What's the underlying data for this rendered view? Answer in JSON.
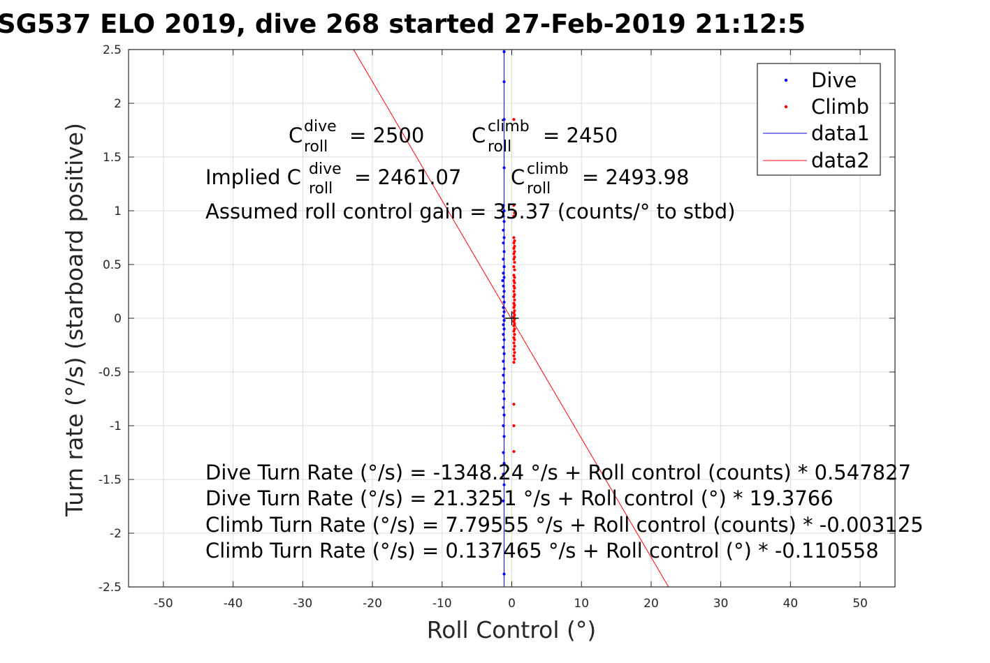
{
  "chart_data": {
    "type": "scatter",
    "title": "SG537 ELO 2019, dive 268 started 27-Feb-2019 21:12:5",
    "xlabel": "Roll Control (°)",
    "ylabel": "Turn rate (°/s) (starboard positive)",
    "xlim": [
      -55,
      55
    ],
    "ylim": [
      -2.5,
      2.5
    ],
    "x_ticks": [
      -50,
      -40,
      -30,
      -20,
      -10,
      0,
      10,
      20,
      30,
      40,
      50
    ],
    "y_ticks": [
      -2.5,
      -2,
      -1.5,
      -1,
      -0.5,
      0,
      0.5,
      1,
      1.5,
      2,
      2.5
    ],
    "x_tick_labels": [
      "-50",
      "-40",
      "-30",
      "-20",
      "-10",
      "0",
      "10",
      "20",
      "30",
      "40",
      "50"
    ],
    "y_tick_labels": [
      "-2.5",
      "-2",
      "-1.5",
      "-1",
      "-0.5",
      "0",
      "0.5",
      "1",
      "1.5",
      "2",
      "2.5"
    ],
    "grid": true,
    "legend_placement": "top-right",
    "series": [
      {
        "name": "Dive",
        "kind": "points",
        "color": "#0000ff",
        "points": [
          [
            -1.1,
            2.48
          ],
          [
            -1.1,
            2.2
          ],
          [
            -1.1,
            1.85
          ],
          [
            -1.1,
            1.4
          ],
          [
            -1.2,
            1.05
          ],
          [
            -1.1,
            1.0
          ],
          [
            -1.2,
            0.95
          ],
          [
            -1.1,
            0.9
          ],
          [
            -1.2,
            0.82
          ],
          [
            -1.1,
            0.75
          ],
          [
            -1.2,
            0.7
          ],
          [
            -1.1,
            0.62
          ],
          [
            -1.2,
            0.55
          ],
          [
            -1.1,
            0.48
          ],
          [
            -1.2,
            0.42
          ],
          [
            -1.1,
            0.38
          ],
          [
            -1.3,
            0.35
          ],
          [
            -1.2,
            0.3
          ],
          [
            -1.1,
            0.25
          ],
          [
            -1.2,
            0.2
          ],
          [
            -1.1,
            0.15
          ],
          [
            -1.2,
            0.1
          ],
          [
            -1.1,
            0.06
          ],
          [
            -1.2,
            0.02
          ],
          [
            -1.1,
            -0.02
          ],
          [
            -1.2,
            -0.06
          ],
          [
            -1.1,
            -0.1
          ],
          [
            -1.2,
            -0.15
          ],
          [
            -1.1,
            -0.2
          ],
          [
            -1.2,
            -0.27
          ],
          [
            -1.1,
            -0.33
          ],
          [
            -1.2,
            -0.4
          ],
          [
            -1.1,
            -0.47
          ],
          [
            -1.2,
            -0.53
          ],
          [
            -1.1,
            -0.6
          ],
          [
            -1.2,
            -0.68
          ],
          [
            -1.1,
            -0.75
          ],
          [
            -1.2,
            -0.83
          ],
          [
            -1.1,
            -0.9
          ],
          [
            -1.2,
            -1.0
          ],
          [
            -1.1,
            -1.1
          ],
          [
            -1.2,
            -1.25
          ],
          [
            -1.1,
            -1.35
          ],
          [
            -1.2,
            -1.45
          ],
          [
            -1.1,
            -1.55
          ],
          [
            -1.2,
            -1.7
          ],
          [
            -1.1,
            -2.38
          ]
        ]
      },
      {
        "name": "Climb",
        "kind": "points",
        "color": "#ff0000",
        "points": [
          [
            0.3,
            1.85
          ],
          [
            0.3,
            1.05
          ],
          [
            0.4,
            0.98
          ],
          [
            0.3,
            0.95
          ],
          [
            0.3,
            0.75
          ],
          [
            0.4,
            0.72
          ],
          [
            0.3,
            0.7
          ],
          [
            0.4,
            0.67
          ],
          [
            0.3,
            0.65
          ],
          [
            0.4,
            0.62
          ],
          [
            0.3,
            0.6
          ],
          [
            0.4,
            0.57
          ],
          [
            0.3,
            0.55
          ],
          [
            0.4,
            0.52
          ],
          [
            0.3,
            0.48
          ],
          [
            0.4,
            0.45
          ],
          [
            0.3,
            0.4
          ],
          [
            0.4,
            0.38
          ],
          [
            0.3,
            0.35
          ],
          [
            0.4,
            0.33
          ],
          [
            0.3,
            0.3
          ],
          [
            0.4,
            0.28
          ],
          [
            0.3,
            0.25
          ],
          [
            0.4,
            0.22
          ],
          [
            0.3,
            0.2
          ],
          [
            0.4,
            0.17
          ],
          [
            0.3,
            0.14
          ],
          [
            0.4,
            0.12
          ],
          [
            0.3,
            0.1
          ],
          [
            0.4,
            0.07
          ],
          [
            0.3,
            0.05
          ],
          [
            0.4,
            0.03
          ],
          [
            0.3,
            0.01
          ],
          [
            0.4,
            -0.01
          ],
          [
            0.3,
            -0.03
          ],
          [
            0.4,
            -0.05
          ],
          [
            0.3,
            -0.07
          ],
          [
            0.4,
            -0.1
          ],
          [
            0.3,
            -0.12
          ],
          [
            0.4,
            -0.15
          ],
          [
            0.3,
            -0.18
          ],
          [
            0.4,
            -0.2
          ],
          [
            0.3,
            -0.23
          ],
          [
            0.4,
            -0.26
          ],
          [
            0.3,
            -0.29
          ],
          [
            0.4,
            -0.32
          ],
          [
            0.3,
            -0.35
          ],
          [
            0.4,
            -0.38
          ],
          [
            0.3,
            -0.41
          ],
          [
            0.3,
            -0.8
          ],
          [
            0.3,
            -1.0
          ],
          [
            0.3,
            -1.24
          ]
        ]
      },
      {
        "name": "data1",
        "kind": "line",
        "color": "#0000ff",
        "points": [
          [
            -1.1,
            2.5
          ],
          [
            -1.1,
            -2.5
          ]
        ]
      },
      {
        "name": "data2",
        "kind": "line",
        "color": "#ff0000",
        "points": [
          [
            -22.7,
            2.5
          ],
          [
            22.5,
            -2.5
          ]
        ]
      }
    ],
    "origin_marker": {
      "x": 0,
      "y": 0
    },
    "annotations": {
      "c_dive_base": "C",
      "c_dive_sup": "dive",
      "c_dive_sub": "roll",
      "c_dive_value": "= 2500",
      "c_climb_base": "C",
      "c_climb_sup": "climb",
      "c_climb_sub": "roll",
      "c_climb_value": "= 2450",
      "implied_prefix": "Implied C",
      "implied_dive_sup": "dive",
      "implied_dive_sub": "roll",
      "implied_dive_value": "= 2461.07",
      "implied_climb_base": "C",
      "implied_climb_sup": "climb",
      "implied_climb_sub": "roll",
      "implied_climb_value": "= 2493.98",
      "gain": "Assumed roll control gain = 35.37 (counts/° to stbd)",
      "eq1": "Dive Turn Rate (°/s) = -1348.24 °/s + Roll control (counts) * 0.547827",
      "eq2": "Dive Turn Rate (°/s) = 21.3251 °/s + Roll control (°) * 19.3766",
      "eq3": "Climb Turn Rate (°/s) = 7.79555 °/s + Roll control (counts) * -0.003125",
      "eq4": "Climb Turn Rate (°/s) = 0.137465 °/s + Roll control (°) * -0.110558"
    }
  }
}
